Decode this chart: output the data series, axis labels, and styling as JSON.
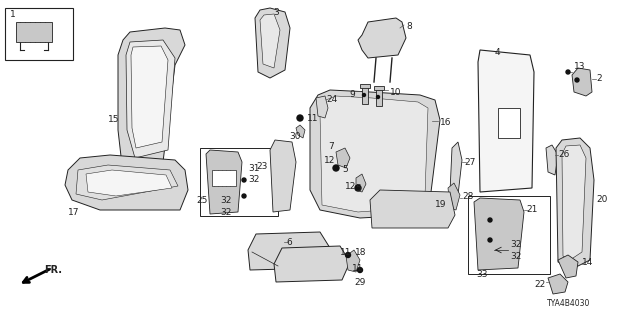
{
  "bg_color": "#ffffff",
  "diagram_id": "TYA4B4030",
  "fig_width": 6.4,
  "fig_height": 3.2,
  "dpi": 100,
  "line_color": "#222222",
  "label_color": "#222222",
  "font_size": 6.5,
  "leader_color": "#555555"
}
